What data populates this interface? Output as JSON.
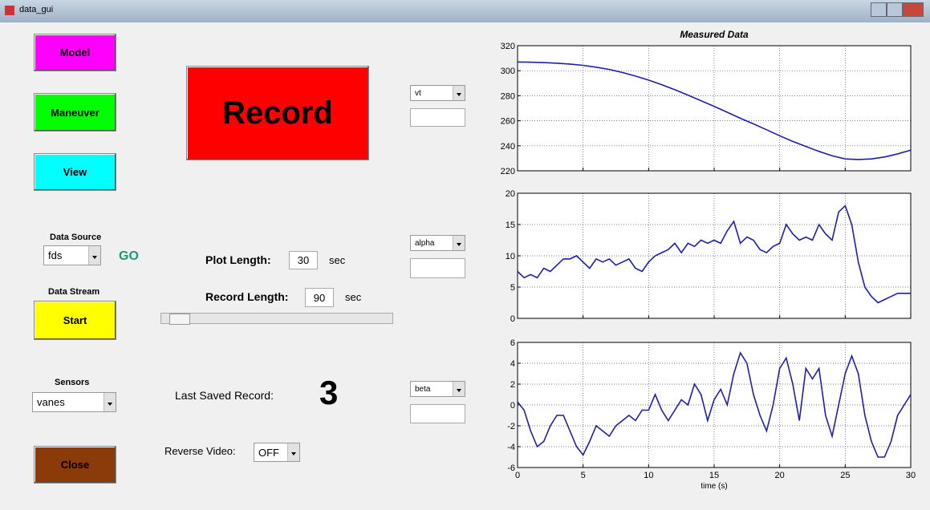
{
  "window": {
    "title": "data_gui"
  },
  "buttons": {
    "model": "Model",
    "maneuver": "Maneuver",
    "view": "View",
    "record": "Record",
    "start": "Start",
    "close": "Close"
  },
  "labels": {
    "data_source": "Data Source",
    "go": "GO",
    "data_stream": "Data Stream",
    "sensors": "Sensors",
    "plot_length": "Plot Length:",
    "plot_length_unit": "sec",
    "record_length": "Record Length:",
    "record_length_unit": "sec",
    "last_saved_record": "Last Saved Record:",
    "reverse_video": "Reverse Video:"
  },
  "fields": {
    "plot_length": "30",
    "record_length": "90",
    "last_saved_record": "3"
  },
  "dropdowns": {
    "data_source": "fds",
    "sensors": "vanes",
    "reverse_video": "OFF",
    "plot1": "vt",
    "plot2": "alpha",
    "plot3": "beta"
  },
  "chart_data": [
    {
      "type": "line",
      "title": "Measured Data",
      "color": "#1f1fa8",
      "grid": true,
      "x": [
        0,
        1,
        2,
        3,
        4,
        5,
        6,
        7,
        8,
        9,
        10,
        11,
        12,
        13,
        14,
        15,
        16,
        17,
        18,
        19,
        20,
        21,
        22,
        23,
        24,
        25,
        26,
        27,
        28,
        29,
        30
      ],
      "values": [
        307,
        306.8,
        306.5,
        306,
        305.3,
        304.3,
        302.8,
        301,
        298.6,
        295.7,
        292.5,
        288.8,
        284.8,
        280.5,
        276,
        271.5,
        266.8,
        262,
        257.5,
        252.8,
        248,
        243.5,
        239.5,
        235.5,
        232,
        229.5,
        229,
        229.5,
        231,
        233.5,
        236.5
      ],
      "xlim": [
        0,
        30
      ],
      "xticks": [
        0,
        5,
        10,
        15,
        20,
        25,
        30
      ],
      "ylim": [
        220,
        320
      ],
      "yticks": [
        220,
        240,
        260,
        280,
        300,
        320
      ]
    },
    {
      "type": "line",
      "color": "#1f1fa8",
      "grid": true,
      "x": [
        0,
        0.5,
        1,
        1.5,
        2,
        2.5,
        3,
        3.5,
        4,
        4.5,
        5,
        5.5,
        6,
        6.5,
        7,
        7.5,
        8,
        8.5,
        9,
        9.5,
        10,
        10.5,
        11,
        11.5,
        12,
        12.5,
        13,
        13.5,
        14,
        14.5,
        15,
        15.5,
        16,
        16.5,
        17,
        17.5,
        18,
        18.5,
        19,
        19.5,
        20,
        20.5,
        21,
        21.5,
        22,
        22.5,
        23,
        23.5,
        24,
        24.5,
        25,
        25.5,
        26,
        26.5,
        27,
        27.5,
        28,
        28.5,
        29,
        29.5,
        30
      ],
      "values": [
        7.5,
        6.5,
        7,
        6.5,
        8,
        7.5,
        8.5,
        9.5,
        9.5,
        10,
        9,
        8,
        9.5,
        9,
        9.5,
        8.5,
        9,
        9.5,
        8,
        7.5,
        9,
        10,
        10.5,
        11,
        12,
        10.5,
        12,
        11.5,
        12.5,
        12,
        12.5,
        12,
        14,
        15.5,
        12,
        13,
        12.5,
        11,
        10.5,
        11.5,
        12,
        15,
        13.5,
        12.5,
        13,
        12.5,
        15,
        13.5,
        12.5,
        17,
        18,
        15,
        9,
        5,
        3.5,
        2.5,
        3,
        3.5,
        4,
        4,
        4
      ],
      "xlim": [
        0,
        30
      ],
      "xticks": [
        0,
        5,
        10,
        15,
        20,
        25,
        30
      ],
      "ylim": [
        0,
        20
      ],
      "yticks": [
        0,
        5,
        10,
        15,
        20
      ]
    },
    {
      "type": "line",
      "xlabel": "time (s)",
      "color": "#1f1fa8",
      "grid": true,
      "x": [
        0,
        0.5,
        1,
        1.5,
        2,
        2.5,
        3,
        3.5,
        4,
        4.5,
        5,
        5.5,
        6,
        6.5,
        7,
        7.5,
        8,
        8.5,
        9,
        9.5,
        10,
        10.5,
        11,
        11.5,
        12,
        12.5,
        13,
        13.5,
        14,
        14.5,
        15,
        15.5,
        16,
        16.5,
        17,
        17.5,
        18,
        18.5,
        19,
        19.5,
        20,
        20.5,
        21,
        21.5,
        22,
        22.5,
        23,
        23.5,
        24,
        24.5,
        25,
        25.5,
        26,
        26.5,
        27,
        27.5,
        28,
        28.5,
        29,
        29.5,
        30
      ],
      "values": [
        0.3,
        -0.5,
        -2.5,
        -4,
        -3.5,
        -2,
        -1,
        -1,
        -2.5,
        -4,
        -4.8,
        -3.5,
        -2,
        -2.5,
        -3,
        -2,
        -1.5,
        -1,
        -1.5,
        -0.5,
        -0.5,
        1,
        -0.5,
        -1.5,
        -0.5,
        0.5,
        0,
        2,
        1,
        -1.5,
        0.5,
        1.5,
        0,
        3,
        5,
        4,
        1,
        -1,
        -2.5,
        0,
        3.5,
        4.5,
        2,
        -1.5,
        3.5,
        2.5,
        3.5,
        -1,
        -3,
        0,
        3,
        4.7,
        3,
        -1,
        -3.5,
        -5,
        -5,
        -3.5,
        -1,
        0,
        1
      ],
      "xlim": [
        0,
        30
      ],
      "xticks": [
        0,
        5,
        10,
        15,
        20,
        25,
        30
      ],
      "ylim": [
        -6,
        6
      ],
      "yticks": [
        -6,
        -4,
        -2,
        0,
        2,
        4,
        6
      ]
    }
  ]
}
